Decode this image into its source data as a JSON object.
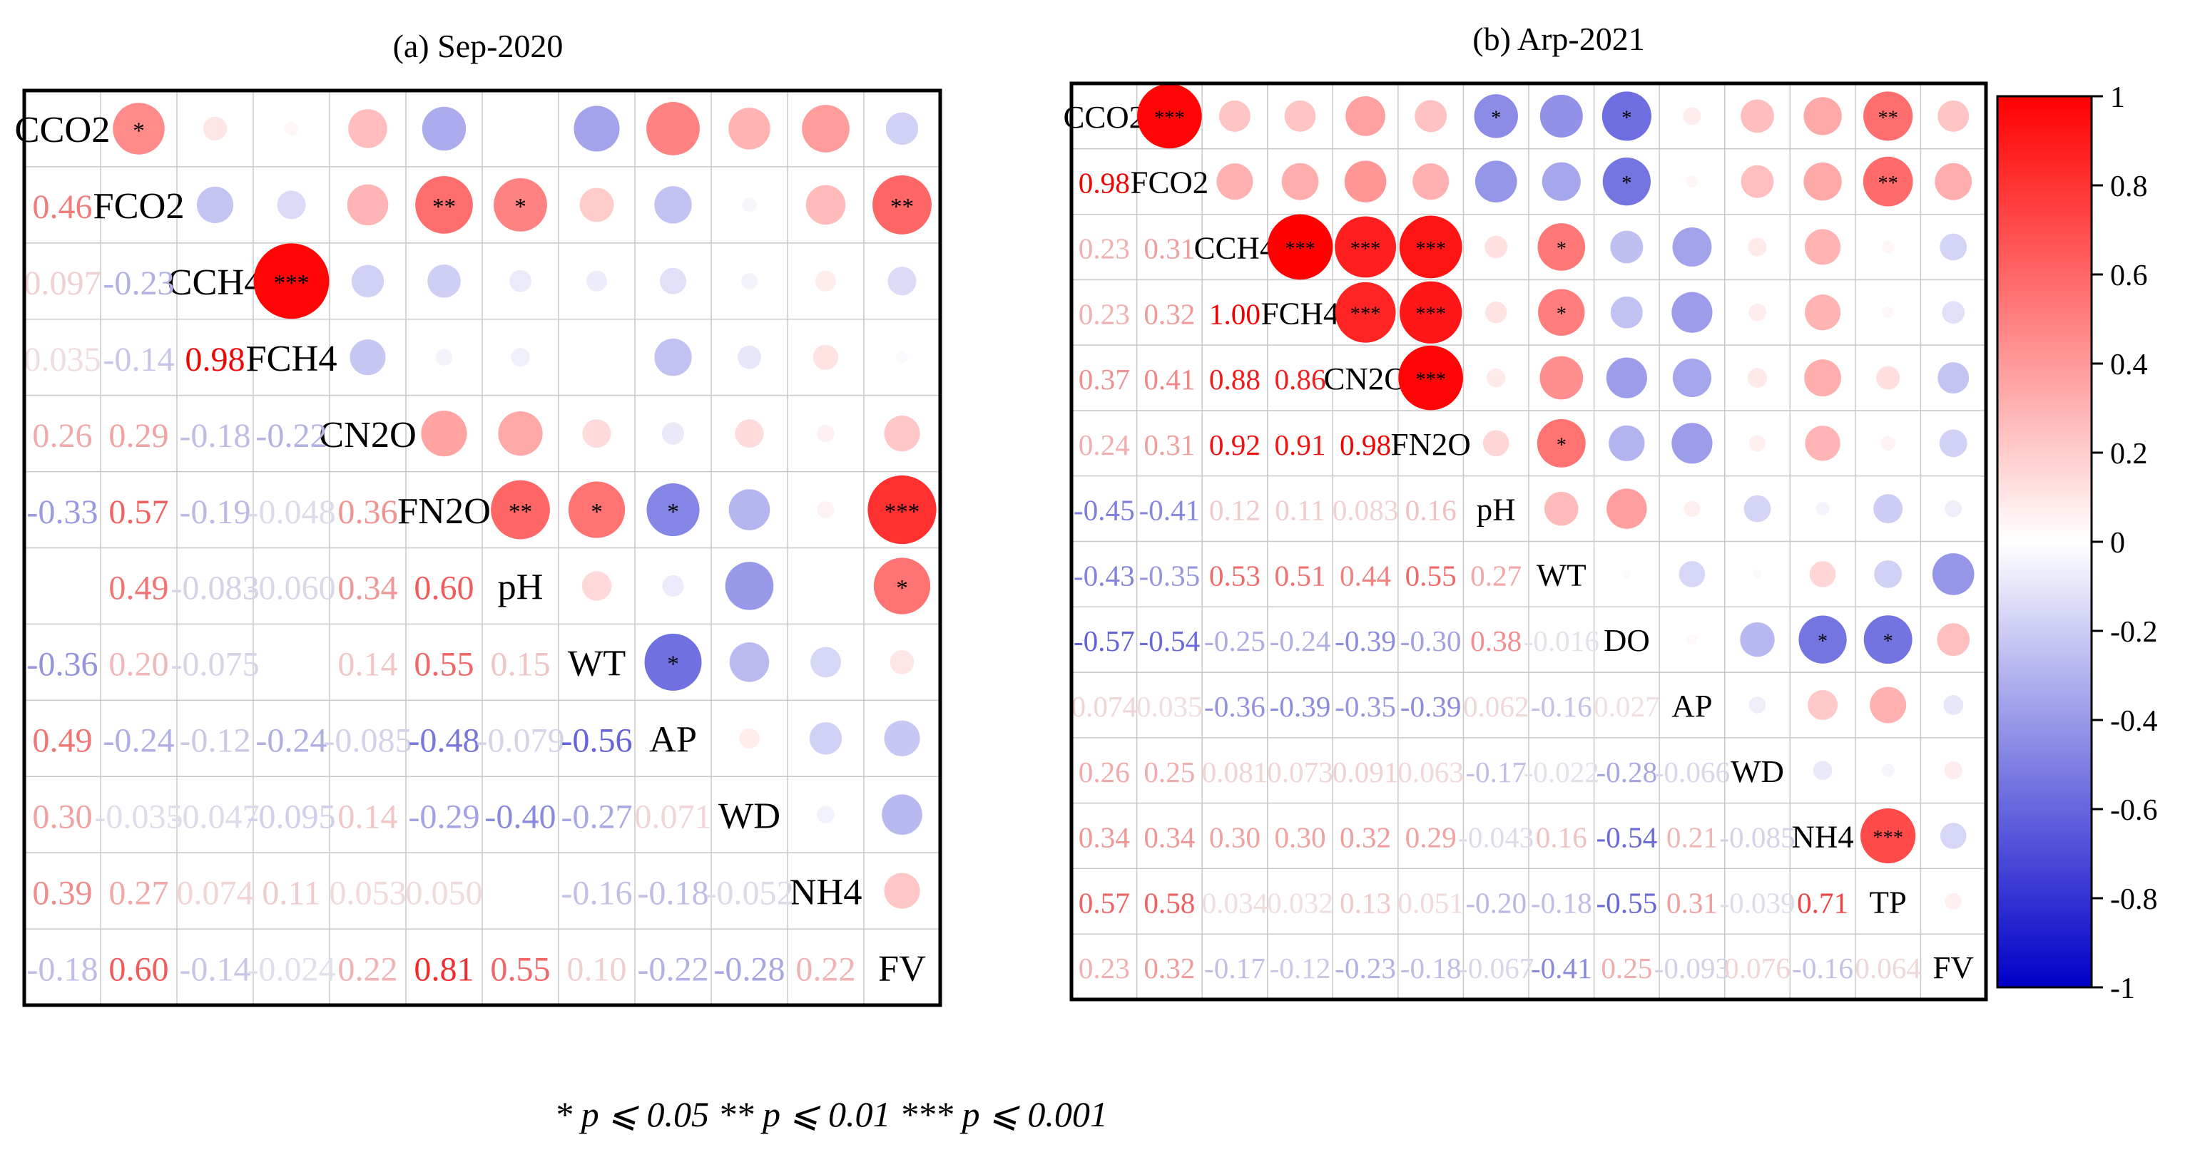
{
  "chart_data": [
    {
      "type": "heatmap",
      "title": "(a) Sep-2020",
      "variables": [
        "CCO2",
        "FCO2",
        "CCH4",
        "FCH4",
        "CN2O",
        "FN2O",
        "pH",
        "WT",
        "AP",
        "WD",
        "NH4",
        "FV"
      ],
      "matrix": [
        [
          null,
          0.46,
          0.097,
          0.035,
          0.26,
          -0.33,
          null,
          -0.36,
          0.49,
          0.3,
          0.39,
          -0.18
        ],
        [
          0.46,
          null,
          -0.23,
          -0.14,
          0.29,
          0.57,
          0.49,
          0.2,
          -0.24,
          -0.035,
          0.27,
          0.6
        ],
        [
          0.097,
          -0.23,
          null,
          0.98,
          -0.18,
          -0.19,
          -0.083,
          -0.075,
          -0.12,
          -0.047,
          0.074,
          -0.14
        ],
        [
          0.035,
          -0.14,
          0.98,
          null,
          -0.22,
          -0.048,
          -0.06,
          null,
          -0.24,
          -0.095,
          0.11,
          -0.024
        ],
        [
          0.26,
          0.29,
          -0.18,
          -0.22,
          null,
          0.36,
          0.34,
          0.14,
          -0.085,
          0.14,
          0.053,
          0.22
        ],
        [
          -0.33,
          0.57,
          -0.19,
          -0.048,
          0.36,
          null,
          0.6,
          0.55,
          -0.48,
          -0.29,
          0.05,
          0.81
        ],
        [
          null,
          0.49,
          -0.083,
          -0.06,
          0.34,
          0.6,
          null,
          0.15,
          -0.079,
          -0.4,
          null,
          0.55
        ],
        [
          -0.36,
          0.2,
          -0.075,
          null,
          0.14,
          0.55,
          0.15,
          null,
          -0.56,
          -0.27,
          -0.16,
          0.1
        ],
        [
          0.49,
          -0.24,
          -0.12,
          -0.24,
          -0.085,
          -0.48,
          -0.079,
          -0.56,
          null,
          0.071,
          -0.18,
          -0.22
        ],
        [
          0.3,
          -0.035,
          -0.047,
          -0.095,
          0.14,
          -0.29,
          -0.4,
          -0.27,
          0.071,
          null,
          -0.052,
          -0.28
        ],
        [
          0.39,
          0.27,
          0.074,
          0.11,
          0.053,
          0.05,
          null,
          -0.16,
          -0.18,
          -0.052,
          null,
          0.22
        ],
        [
          -0.18,
          0.6,
          -0.14,
          -0.024,
          0.22,
          0.81,
          0.55,
          0.1,
          -0.22,
          -0.28,
          0.22,
          null
        ]
      ],
      "lower_labels": [
        [
          "1,0",
          "0.46"
        ],
        [
          "2,0",
          "0.097"
        ],
        [
          "2,1",
          "-0.23"
        ],
        [
          "3,0",
          "0.035"
        ],
        [
          "3,1",
          "-0.14"
        ],
        [
          "3,2",
          "0.98"
        ],
        [
          "4,0",
          "0.26"
        ],
        [
          "4,1",
          "0.29"
        ],
        [
          "4,2",
          "-0.18"
        ],
        [
          "4,3",
          "-0.22"
        ],
        [
          "5,0",
          "-0.33"
        ],
        [
          "5,1",
          "0.57"
        ],
        [
          "5,2",
          "-0.19"
        ],
        [
          "5,3",
          "-0.048"
        ],
        [
          "5,4",
          "0.36"
        ],
        [
          "6,1",
          "0.49"
        ],
        [
          "6,2",
          "-0.083"
        ],
        [
          "6,3",
          "-0.060"
        ],
        [
          "6,4",
          "0.34"
        ],
        [
          "6,5",
          "0.60"
        ],
        [
          "7,0",
          "-0.36"
        ],
        [
          "7,1",
          "0.20"
        ],
        [
          "7,2",
          "-0.075"
        ],
        [
          "7,4",
          "0.14"
        ],
        [
          "7,5",
          "0.55"
        ],
        [
          "7,6",
          "0.15"
        ],
        [
          "8,0",
          "0.49"
        ],
        [
          "8,1",
          "-0.24"
        ],
        [
          "8,2",
          "-0.12"
        ],
        [
          "8,3",
          "-0.24"
        ],
        [
          "8,4",
          "-0.085"
        ],
        [
          "8,5",
          "-0.48"
        ],
        [
          "8,6",
          "-0.079"
        ],
        [
          "8,7",
          "-0.56"
        ],
        [
          "9,0",
          "0.30"
        ],
        [
          "9,1",
          "-0.035"
        ],
        [
          "9,2",
          "-0.047"
        ],
        [
          "9,3",
          "-0.095"
        ],
        [
          "9,4",
          "0.14"
        ],
        [
          "9,5",
          "-0.29"
        ],
        [
          "9,6",
          "-0.40"
        ],
        [
          "9,7",
          "-0.27"
        ],
        [
          "9,8",
          "0.071"
        ],
        [
          "10,0",
          "0.39"
        ],
        [
          "10,1",
          "0.27"
        ],
        [
          "10,2",
          "0.074"
        ],
        [
          "10,3",
          "0.11"
        ],
        [
          "10,4",
          "0.053"
        ],
        [
          "10,5",
          "0.050"
        ],
        [
          "10,7",
          "-0.16"
        ],
        [
          "10,8",
          "-0.18"
        ],
        [
          "10,9",
          "-0.052"
        ],
        [
          "11,0",
          "-0.18"
        ],
        [
          "11,1",
          "0.60"
        ],
        [
          "11,2",
          "-0.14"
        ],
        [
          "11,3",
          "-0.024"
        ],
        [
          "11,4",
          "0.22"
        ],
        [
          "11,5",
          "0.81"
        ],
        [
          "11,6",
          "0.55"
        ],
        [
          "11,7",
          "0.10"
        ],
        [
          "11,8",
          "-0.22"
        ],
        [
          "11,9",
          "-0.28"
        ],
        [
          "11,10",
          "0.22"
        ]
      ],
      "significance": [
        [
          "0,1",
          "*"
        ],
        [
          "1,5",
          "**"
        ],
        [
          "1,6",
          "*"
        ],
        [
          "1,11",
          "**"
        ],
        [
          "2,3",
          "***"
        ],
        [
          "5,6",
          "**"
        ],
        [
          "5,7",
          "*"
        ],
        [
          "5,8",
          "*"
        ],
        [
          "5,11",
          "***"
        ],
        [
          "6,11",
          "*"
        ],
        [
          "7,8",
          "*"
        ]
      ]
    },
    {
      "type": "heatmap",
      "title": "(b) Arp-2021",
      "variables": [
        "CCO2",
        "FCO2",
        "CCH4",
        "FCH4",
        "CN2O",
        "FN2O",
        "pH",
        "WT",
        "DO",
        "AP",
        "WD",
        "NH4",
        "TP",
        "FV"
      ],
      "matrix": [
        [
          null,
          0.98,
          0.23,
          0.23,
          0.37,
          0.24,
          -0.45,
          -0.43,
          -0.57,
          0.074,
          0.26,
          0.34,
          0.57,
          0.23
        ],
        [
          0.98,
          null,
          0.31,
          0.32,
          0.41,
          0.31,
          -0.41,
          -0.35,
          -0.54,
          0.035,
          0.25,
          0.34,
          0.58,
          0.32
        ],
        [
          0.23,
          0.31,
          null,
          1.0,
          0.88,
          0.92,
          0.12,
          0.53,
          -0.25,
          -0.36,
          0.081,
          0.3,
          0.034,
          -0.17
        ],
        [
          0.23,
          0.32,
          1.0,
          null,
          0.86,
          0.91,
          0.11,
          0.51,
          -0.24,
          -0.39,
          0.073,
          0.3,
          0.032,
          -0.12
        ],
        [
          0.37,
          0.41,
          0.88,
          0.86,
          null,
          0.98,
          0.083,
          0.44,
          -0.39,
          -0.35,
          0.091,
          0.32,
          0.13,
          -0.23
        ],
        [
          0.24,
          0.31,
          0.92,
          0.91,
          0.98,
          null,
          0.16,
          0.55,
          -0.3,
          -0.39,
          0.063,
          0.29,
          0.051,
          -0.18
        ],
        [
          -0.45,
          -0.41,
          0.12,
          0.11,
          0.083,
          0.16,
          null,
          0.27,
          0.38,
          0.062,
          -0.17,
          -0.043,
          -0.2,
          -0.067
        ],
        [
          -0.43,
          -0.35,
          0.53,
          0.51,
          0.44,
          0.55,
          0.27,
          null,
          -0.016,
          -0.16,
          -0.022,
          0.16,
          -0.18,
          -0.41
        ],
        [
          -0.57,
          -0.54,
          -0.25,
          -0.24,
          -0.39,
          -0.3,
          0.38,
          -0.016,
          null,
          0.027,
          -0.28,
          -0.54,
          -0.55,
          0.25
        ],
        [
          0.074,
          0.035,
          -0.36,
          -0.39,
          -0.35,
          -0.39,
          0.062,
          -0.16,
          0.027,
          null,
          -0.066,
          0.21,
          0.31,
          -0.093
        ],
        [
          0.26,
          0.25,
          0.081,
          0.073,
          0.091,
          0.063,
          -0.17,
          -0.022,
          -0.28,
          -0.066,
          null,
          -0.085,
          -0.039,
          0.076
        ],
        [
          0.34,
          0.34,
          0.3,
          0.3,
          0.32,
          0.29,
          -0.043,
          0.16,
          -0.54,
          0.21,
          -0.085,
          null,
          0.71,
          -0.16
        ],
        [
          0.57,
          0.58,
          0.034,
          0.032,
          0.13,
          0.051,
          -0.2,
          -0.18,
          -0.55,
          0.31,
          -0.039,
          0.71,
          null,
          0.064
        ],
        [
          0.23,
          0.32,
          -0.17,
          -0.12,
          -0.23,
          -0.18,
          -0.067,
          -0.41,
          0.25,
          -0.093,
          0.076,
          -0.16,
          0.064,
          null
        ]
      ],
      "lower_labels": [
        [
          "1,0",
          "0.98"
        ],
        [
          "2,0",
          "0.23"
        ],
        [
          "2,1",
          "0.31"
        ],
        [
          "3,0",
          "0.23"
        ],
        [
          "3,1",
          "0.32"
        ],
        [
          "3,2",
          "1.00"
        ],
        [
          "4,0",
          "0.37"
        ],
        [
          "4,1",
          "0.41"
        ],
        [
          "4,2",
          "0.88"
        ],
        [
          "4,3",
          "0.86"
        ],
        [
          "5,0",
          "0.24"
        ],
        [
          "5,1",
          "0.31"
        ],
        [
          "5,2",
          "0.92"
        ],
        [
          "5,3",
          "0.91"
        ],
        [
          "5,4",
          "0.98"
        ],
        [
          "6,0",
          "-0.45"
        ],
        [
          "6,1",
          "-0.41"
        ],
        [
          "6,2",
          "0.12"
        ],
        [
          "6,3",
          "0.11"
        ],
        [
          "6,4",
          "0.083"
        ],
        [
          "6,5",
          "0.16"
        ],
        [
          "7,0",
          "-0.43"
        ],
        [
          "7,1",
          "-0.35"
        ],
        [
          "7,2",
          "0.53"
        ],
        [
          "7,3",
          "0.51"
        ],
        [
          "7,4",
          "0.44"
        ],
        [
          "7,5",
          "0.55"
        ],
        [
          "7,6",
          "0.27"
        ],
        [
          "8,0",
          "-0.57"
        ],
        [
          "8,1",
          "-0.54"
        ],
        [
          "8,2",
          "-0.25"
        ],
        [
          "8,3",
          "-0.24"
        ],
        [
          "8,4",
          "-0.39"
        ],
        [
          "8,5",
          "-0.30"
        ],
        [
          "8,6",
          "0.38"
        ],
        [
          "8,7",
          "-0.016"
        ],
        [
          "9,0",
          "0.074"
        ],
        [
          "9,1",
          "0.035"
        ],
        [
          "9,2",
          "-0.36"
        ],
        [
          "9,3",
          "-0.39"
        ],
        [
          "9,4",
          "-0.35"
        ],
        [
          "9,5",
          "-0.39"
        ],
        [
          "9,6",
          "0.062"
        ],
        [
          "9,7",
          "-0.16"
        ],
        [
          "9,8",
          "0.027"
        ],
        [
          "10,0",
          "0.26"
        ],
        [
          "10,1",
          "0.25"
        ],
        [
          "10,2",
          "0.081"
        ],
        [
          "10,3",
          "0.073"
        ],
        [
          "10,4",
          "0.091"
        ],
        [
          "10,5",
          "0.063"
        ],
        [
          "10,6",
          "-0.17"
        ],
        [
          "10,7",
          "-0.022"
        ],
        [
          "10,8",
          "-0.28"
        ],
        [
          "10,9",
          "-0.066"
        ],
        [
          "11,0",
          "0.34"
        ],
        [
          "11,1",
          "0.34"
        ],
        [
          "11,2",
          "0.30"
        ],
        [
          "11,3",
          "0.30"
        ],
        [
          "11,4",
          "0.32"
        ],
        [
          "11,5",
          "0.29"
        ],
        [
          "11,6",
          "-0.043"
        ],
        [
          "11,7",
          "0.16"
        ],
        [
          "11,8",
          "-0.54"
        ],
        [
          "11,9",
          "0.21"
        ],
        [
          "11,10",
          "-0.085"
        ],
        [
          "12,0",
          "0.57"
        ],
        [
          "12,1",
          "0.58"
        ],
        [
          "12,2",
          "0.034"
        ],
        [
          "12,3",
          "0.032"
        ],
        [
          "12,4",
          "0.13"
        ],
        [
          "12,5",
          "0.051"
        ],
        [
          "12,6",
          "-0.20"
        ],
        [
          "12,7",
          "-0.18"
        ],
        [
          "12,8",
          "-0.55"
        ],
        [
          "12,9",
          "0.31"
        ],
        [
          "12,10",
          "-0.039"
        ],
        [
          "12,11",
          "0.71"
        ],
        [
          "13,0",
          "0.23"
        ],
        [
          "13,1",
          "0.32"
        ],
        [
          "13,2",
          "-0.17"
        ],
        [
          "13,3",
          "-0.12"
        ],
        [
          "13,4",
          "-0.23"
        ],
        [
          "13,5",
          "-0.18"
        ],
        [
          "13,6",
          "-0.067"
        ],
        [
          "13,7",
          "-0.41"
        ],
        [
          "13,8",
          "0.25"
        ],
        [
          "13,9",
          "-0.093"
        ],
        [
          "13,10",
          "0.076"
        ],
        [
          "13,11",
          "-0.16"
        ],
        [
          "13,12",
          "0.064"
        ]
      ],
      "significance": [
        [
          "0,1",
          "***"
        ],
        [
          "0,6",
          "*"
        ],
        [
          "0,8",
          "*"
        ],
        [
          "0,12",
          "**"
        ],
        [
          "1,8",
          "*"
        ],
        [
          "1,12",
          "**"
        ],
        [
          "2,3",
          "***"
        ],
        [
          "2,4",
          "***"
        ],
        [
          "2,5",
          "***"
        ],
        [
          "2,7",
          "*"
        ],
        [
          "3,4",
          "***"
        ],
        [
          "3,5",
          "***"
        ],
        [
          "3,7",
          "*"
        ],
        [
          "4,5",
          "***"
        ],
        [
          "5,7",
          "*"
        ],
        [
          "8,11",
          "*"
        ],
        [
          "8,12",
          "*"
        ],
        [
          "11,12",
          "***"
        ]
      ]
    }
  ],
  "colorbar": {
    "ticks": [
      "1",
      "0.8",
      "0.6",
      "0.4",
      "0.2",
      "0",
      "-0.2",
      "-0.4",
      "-0.6",
      "-0.8",
      "-1"
    ],
    "colors": [
      "#0000c8",
      "#ffffff",
      "#ff0000"
    ],
    "range": [
      -1,
      1
    ]
  },
  "legend_text": "* p ⩽ 0.05  ** p ⩽ 0.01  *** p ⩽ 0.001"
}
